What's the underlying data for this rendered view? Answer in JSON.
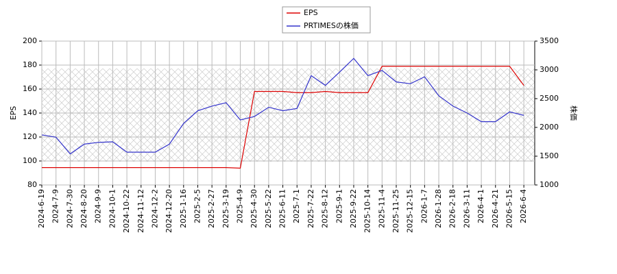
{
  "chart_data": {
    "type": "line",
    "y_label": "EPS",
    "y2_label": "株価",
    "categories": [
      "2024-6-19",
      "2024-7-9",
      "2024-7-30",
      "2024-8-20",
      "2024-9-9",
      "2024-10-1",
      "2024-10-22",
      "2024-11-12",
      "2024-12-2",
      "2024-12-20",
      "2025-1-16",
      "2025-2-5",
      "2025-2-27",
      "2025-3-19",
      "2025-4-9",
      "2025-4-30",
      "2025-5-22",
      "2025-6-11",
      "2025-7-1",
      "2025-7-22",
      "2025-8-12",
      "2025-9-1",
      "2025-9-22",
      "2025-10-14",
      "2025-11-4",
      "2025-11-25",
      "2025-12-15",
      "2026-1-7",
      "2026-1-28",
      "2026-2-18",
      "2026-3-11",
      "2026-4-1",
      "2026-4-21",
      "2026-5-15",
      "2026-6-4"
    ],
    "series": [
      {
        "name": "EPS",
        "color": "#dd0000",
        "values": [
          94.5,
          94.5,
          94.5,
          94.5,
          94.5,
          94.5,
          94.5,
          94.5,
          94.5,
          94.5,
          94.5,
          94.5,
          94.5,
          94.5,
          94,
          158,
          158,
          158,
          157,
          157,
          158,
          157,
          157,
          157,
          179,
          179,
          179,
          179,
          179,
          179,
          179,
          179,
          179,
          179,
          163
        ]
      },
      {
        "name": "PRTIMESの株価",
        "color": "#3333cc",
        "axis": "y2",
        "values": [
          1870,
          1830,
          1540,
          1710,
          1740,
          1750,
          1570,
          1570,
          1570,
          1710,
          2070,
          2290,
          2370,
          2430,
          2130,
          2190,
          2350,
          2290,
          2330,
          2900,
          2730,
          2960,
          3200,
          2900,
          2990,
          2790,
          2760,
          2880,
          2550,
          2370,
          2250,
          2100,
          2100,
          2270,
          2210
        ]
      }
    ],
    "ylim": [
      80,
      200
    ],
    "yticks": [
      80,
      100,
      120,
      140,
      160,
      180,
      200
    ],
    "y2lim": [
      1000,
      3500
    ],
    "y2ticks": [
      1000,
      1500,
      2000,
      2500,
      3000,
      3500
    ],
    "grid": true
  }
}
